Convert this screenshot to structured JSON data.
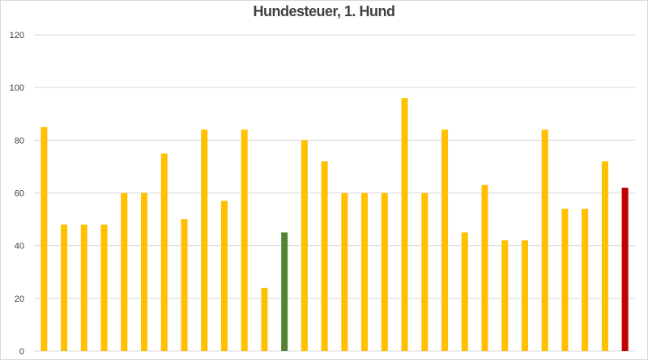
{
  "chart_data": {
    "type": "bar",
    "title": "Hundesteuer, 1. Hund",
    "xlabel": "",
    "ylabel": "",
    "ylim": [
      0,
      120
    ],
    "yticks": [
      0,
      20,
      40,
      60,
      80,
      100,
      120
    ],
    "grid": true,
    "legend": "none",
    "values": [
      85,
      48,
      48,
      48,
      60,
      60,
      75,
      50,
      84,
      57,
      84,
      24,
      45,
      80,
      72,
      60,
      60,
      60,
      96,
      60,
      84,
      45,
      63,
      42,
      42,
      84,
      54,
      54,
      72,
      62
    ],
    "colors": {
      "default": "#ffc000",
      "highlight_green": "#548235",
      "highlight_red": "#c00000"
    },
    "highlight": {
      "12": "#548235",
      "29": "#c00000"
    }
  }
}
